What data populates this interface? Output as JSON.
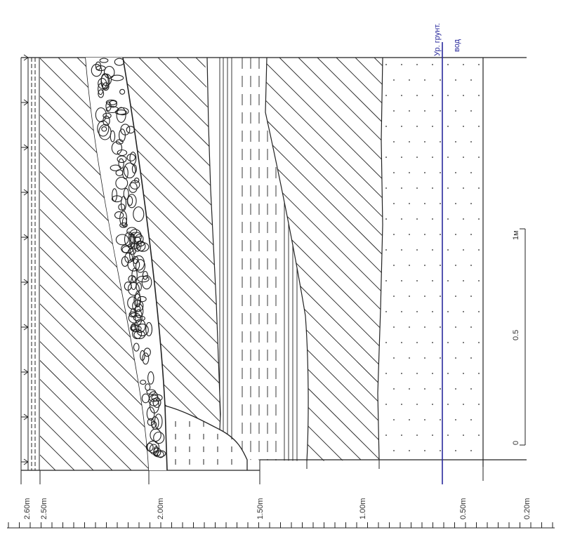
{
  "diagram": {
    "depth_labels": [
      "2.60m",
      "2.50m",
      "2.00m",
      "1.50m",
      "1.00m",
      "0.50m",
      "0.20m"
    ],
    "groundwater_label_line1": "Ур. грунт.",
    "groundwater_label_line2": "вод",
    "scale_bar": {
      "label_zero": "0",
      "label_half": "0.5",
      "label_one": "1м"
    },
    "colors": {
      "line": "#222222",
      "groundwater": "#2a2a9c"
    }
  }
}
